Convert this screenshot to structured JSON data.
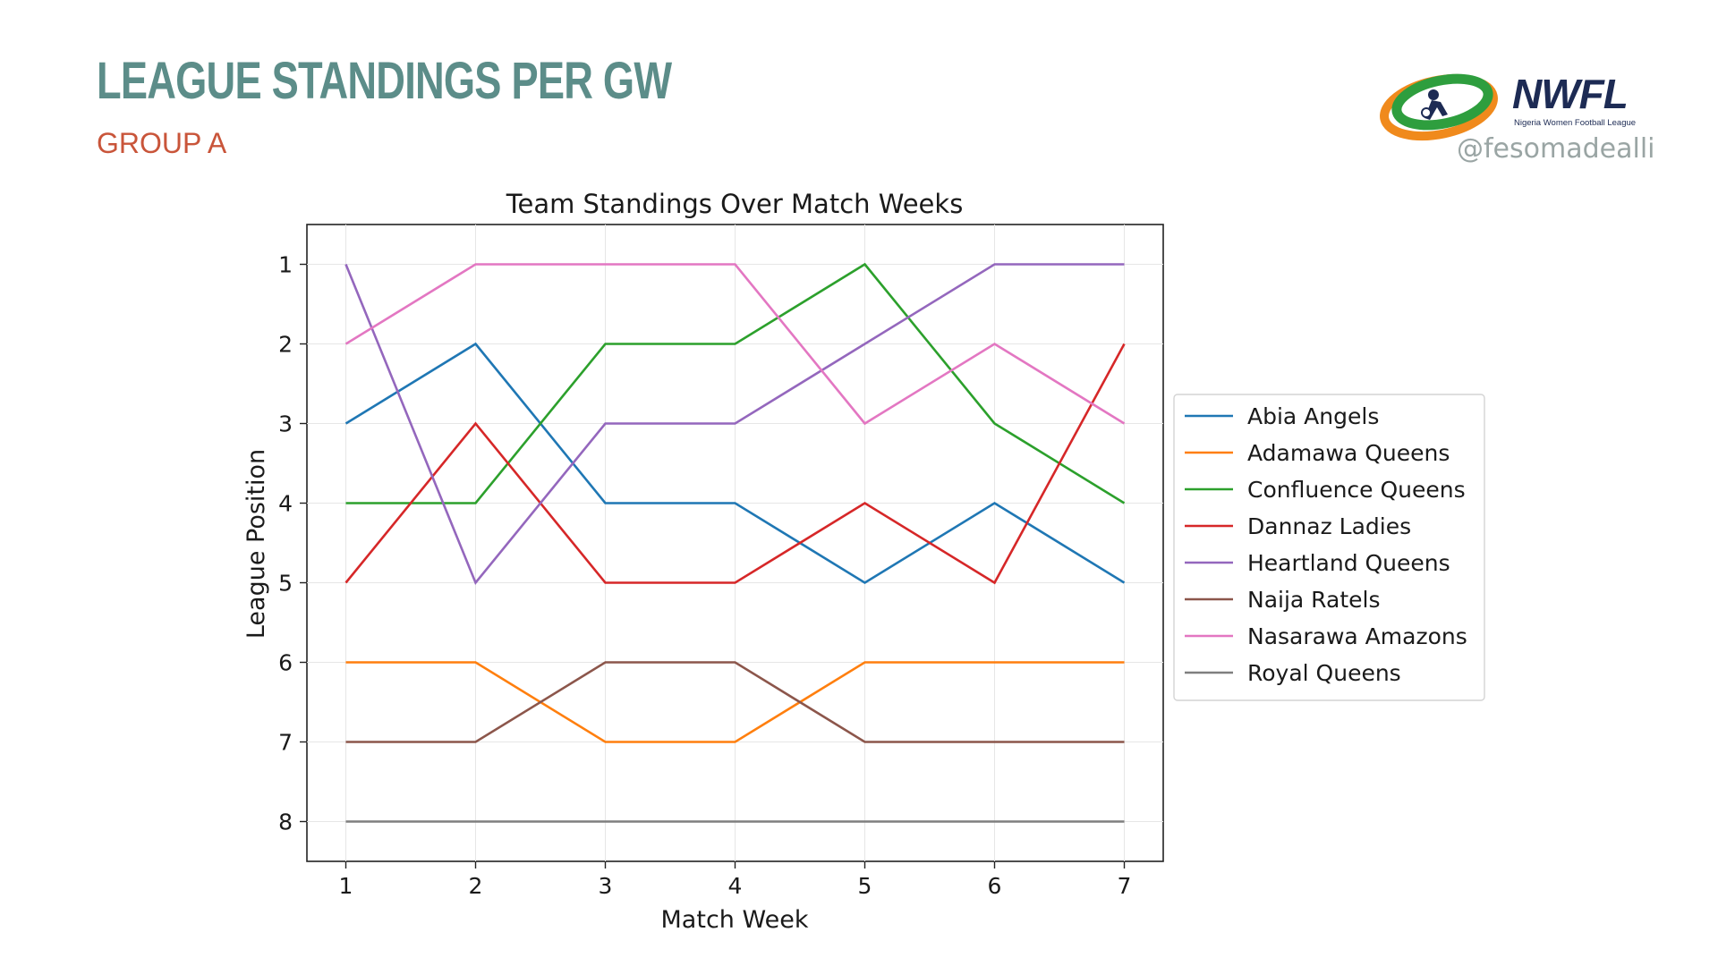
{
  "header": {
    "title": "LEAGUE STANDINGS PER GW",
    "subtitle": "GROUP A",
    "handle": "@fesomadealli"
  },
  "logo": {
    "wordmark": "NWFL",
    "tagline": "Nigeria Women Football League",
    "icon": "football-player-swoosh-icon"
  },
  "colors": {
    "title": "#5c8d89",
    "subtitle": "#c9553a",
    "handle": "#9aa5a4",
    "wordmark": "#1d2b54",
    "logo_green": "#2e9e3e",
    "logo_orange": "#f08a1c"
  },
  "chart_data": {
    "type": "line",
    "title": "Team Standings Over Match Weeks",
    "xlabel": "Match Week",
    "ylabel": "League Position",
    "x": [
      1,
      2,
      3,
      4,
      5,
      6,
      7
    ],
    "xticks": [
      "1",
      "2",
      "3",
      "4",
      "5",
      "6",
      "7"
    ],
    "yticks": [
      "1",
      "2",
      "3",
      "4",
      "5",
      "6",
      "7",
      "8"
    ],
    "xlim": [
      0.7,
      7.3
    ],
    "ylim": [
      8.5,
      0.5
    ],
    "y_inverted": true,
    "grid": true,
    "legend_position": "right",
    "series": [
      {
        "name": "Abia Angels",
        "color": "#1f77b4",
        "values": [
          3,
          2,
          4,
          4,
          5,
          4,
          5
        ]
      },
      {
        "name": "Adamawa Queens",
        "color": "#ff7f0e",
        "values": [
          6,
          6,
          7,
          7,
          6,
          6,
          6
        ]
      },
      {
        "name": "Confluence Queens",
        "color": "#2ca02c",
        "values": [
          4,
          4,
          2,
          2,
          1,
          3,
          4
        ]
      },
      {
        "name": "Dannaz Ladies",
        "color": "#d62728",
        "values": [
          5,
          3,
          5,
          5,
          4,
          5,
          2
        ]
      },
      {
        "name": "Heartland Queens",
        "color": "#9467bd",
        "values": [
          1,
          5,
          3,
          3,
          2,
          1,
          1
        ]
      },
      {
        "name": "Naija Ratels",
        "color": "#8c564b",
        "values": [
          7,
          7,
          6,
          6,
          7,
          7,
          7
        ]
      },
      {
        "name": "Nasarawa Amazons",
        "color": "#e377c2",
        "values": [
          2,
          1,
          1,
          1,
          3,
          2,
          3
        ]
      },
      {
        "name": "Royal Queens",
        "color": "#7f7f7f",
        "values": [
          8,
          8,
          8,
          8,
          8,
          8,
          8
        ]
      }
    ]
  }
}
